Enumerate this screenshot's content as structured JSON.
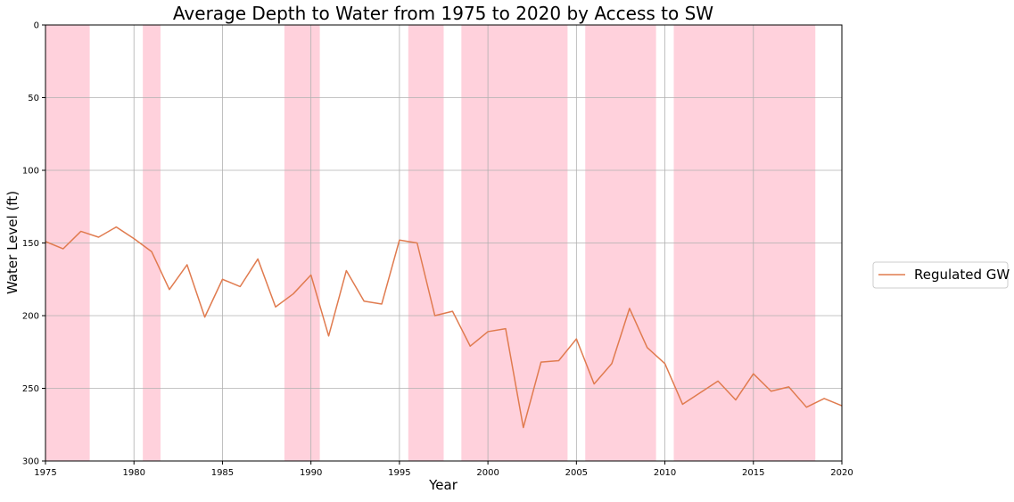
{
  "chart_data": {
    "type": "line",
    "title": "Average Depth to Water from 1975 to 2020 by Access to SW",
    "xlabel": "Year",
    "ylabel": "Water Level (ft)",
    "xlim": [
      1975,
      2020
    ],
    "ylim": [
      0,
      300
    ],
    "y_inverted": true,
    "grid": true,
    "legend_placement": "center-right-outside",
    "x_ticks": [
      "1975",
      "1980",
      "1985",
      "1990",
      "1995",
      "2000",
      "2005",
      "2010",
      "2015",
      "2020"
    ],
    "y_ticks": [
      "0",
      "50",
      "100",
      "150",
      "200",
      "250",
      "300"
    ],
    "series": [
      {
        "name": "Regulated GW",
        "color": "#e07b4f",
        "x": [
          1975,
          1976,
          1977,
          1978,
          1979,
          1980,
          1981,
          1982,
          1983,
          1984,
          1985,
          1986,
          1987,
          1988,
          1989,
          1990,
          1991,
          1992,
          1993,
          1994,
          1995,
          1996,
          1997,
          1998,
          1999,
          2000,
          2001,
          2002,
          2003,
          2004,
          2005,
          2006,
          2007,
          2008,
          2009,
          2010,
          2011,
          2012,
          2013,
          2014,
          2015,
          2016,
          2017,
          2018,
          2019,
          2020
        ],
        "values": [
          149,
          154,
          142,
          146,
          139,
          147,
          156,
          182,
          165,
          201,
          175,
          180,
          161,
          194,
          185,
          172,
          214,
          169,
          190,
          192,
          148,
          150,
          200,
          197,
          221,
          211,
          209,
          277,
          232,
          231,
          216,
          247,
          233,
          195,
          222,
          233,
          261,
          253,
          245,
          258,
          240,
          252,
          249,
          263,
          257,
          262
        ]
      }
    ],
    "shaded_ranges": {
      "color": "#ffd1dc",
      "ranges": [
        [
          1975,
          1977.5
        ],
        [
          1980.5,
          1981.5
        ],
        [
          1988.5,
          1990.5
        ],
        [
          1995.5,
          1997.5
        ],
        [
          1998.5,
          2004.5
        ],
        [
          2005.5,
          2009.5
        ],
        [
          2010.5,
          2018.5
        ]
      ]
    }
  }
}
